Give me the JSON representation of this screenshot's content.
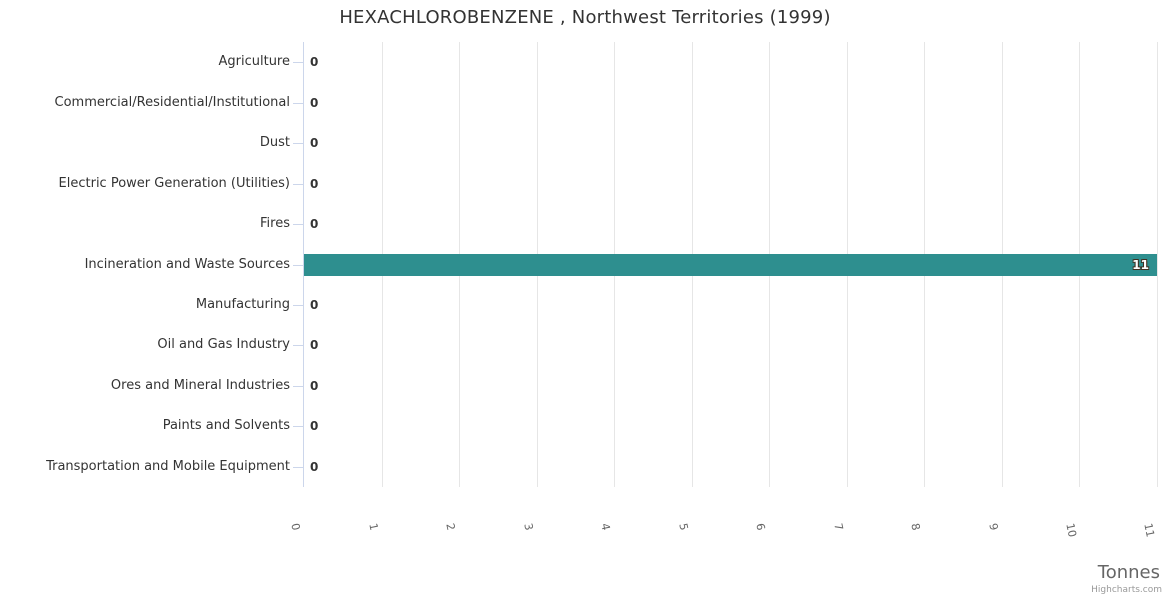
{
  "chart": {
    "title": "HEXACHLOROBENZENE , Northwest Territories (1999)",
    "xaxis_title": "Tonnes",
    "credit": "Highcharts.com"
  },
  "chart_data": {
    "type": "bar",
    "orientation": "horizontal",
    "title": "HEXACHLOROBENZENE , Northwest Territories (1999)",
    "categories": [
      "Agriculture",
      "Commercial/Residential/Institutional",
      "Dust",
      "Electric Power Generation (Utilities)",
      "Fires",
      "Incineration and Waste Sources",
      "Manufacturing",
      "Oil and Gas Industry",
      "Ores and Mineral Industries",
      "Paints and Solvents",
      "Transportation and Mobile Equipment"
    ],
    "values": [
      0,
      0,
      0,
      0,
      0,
      11,
      0,
      0,
      0,
      0,
      0
    ],
    "data_labels": [
      "0",
      "0",
      "0",
      "0",
      "0",
      "11",
      "0",
      "0",
      "0",
      "0",
      "0"
    ],
    "xlabel": "Tonnes",
    "ylabel": "",
    "xlim": [
      0,
      11
    ],
    "x_ticks": [
      0,
      1,
      2,
      3,
      4,
      5,
      6,
      7,
      8,
      9,
      10,
      11
    ],
    "grid": true,
    "legend": false,
    "colors": {
      "bar": "#2E8F8F",
      "grid_line": "#E6E6E6",
      "axis_line": "#CCD6EB",
      "category_label": "#333333",
      "tick_label": "#666666",
      "axis_title": "#666666",
      "title": "#333333",
      "data_label_zero": "#333333",
      "data_label_in_bar": "#FFFFFF",
      "credit": "#999999"
    }
  }
}
